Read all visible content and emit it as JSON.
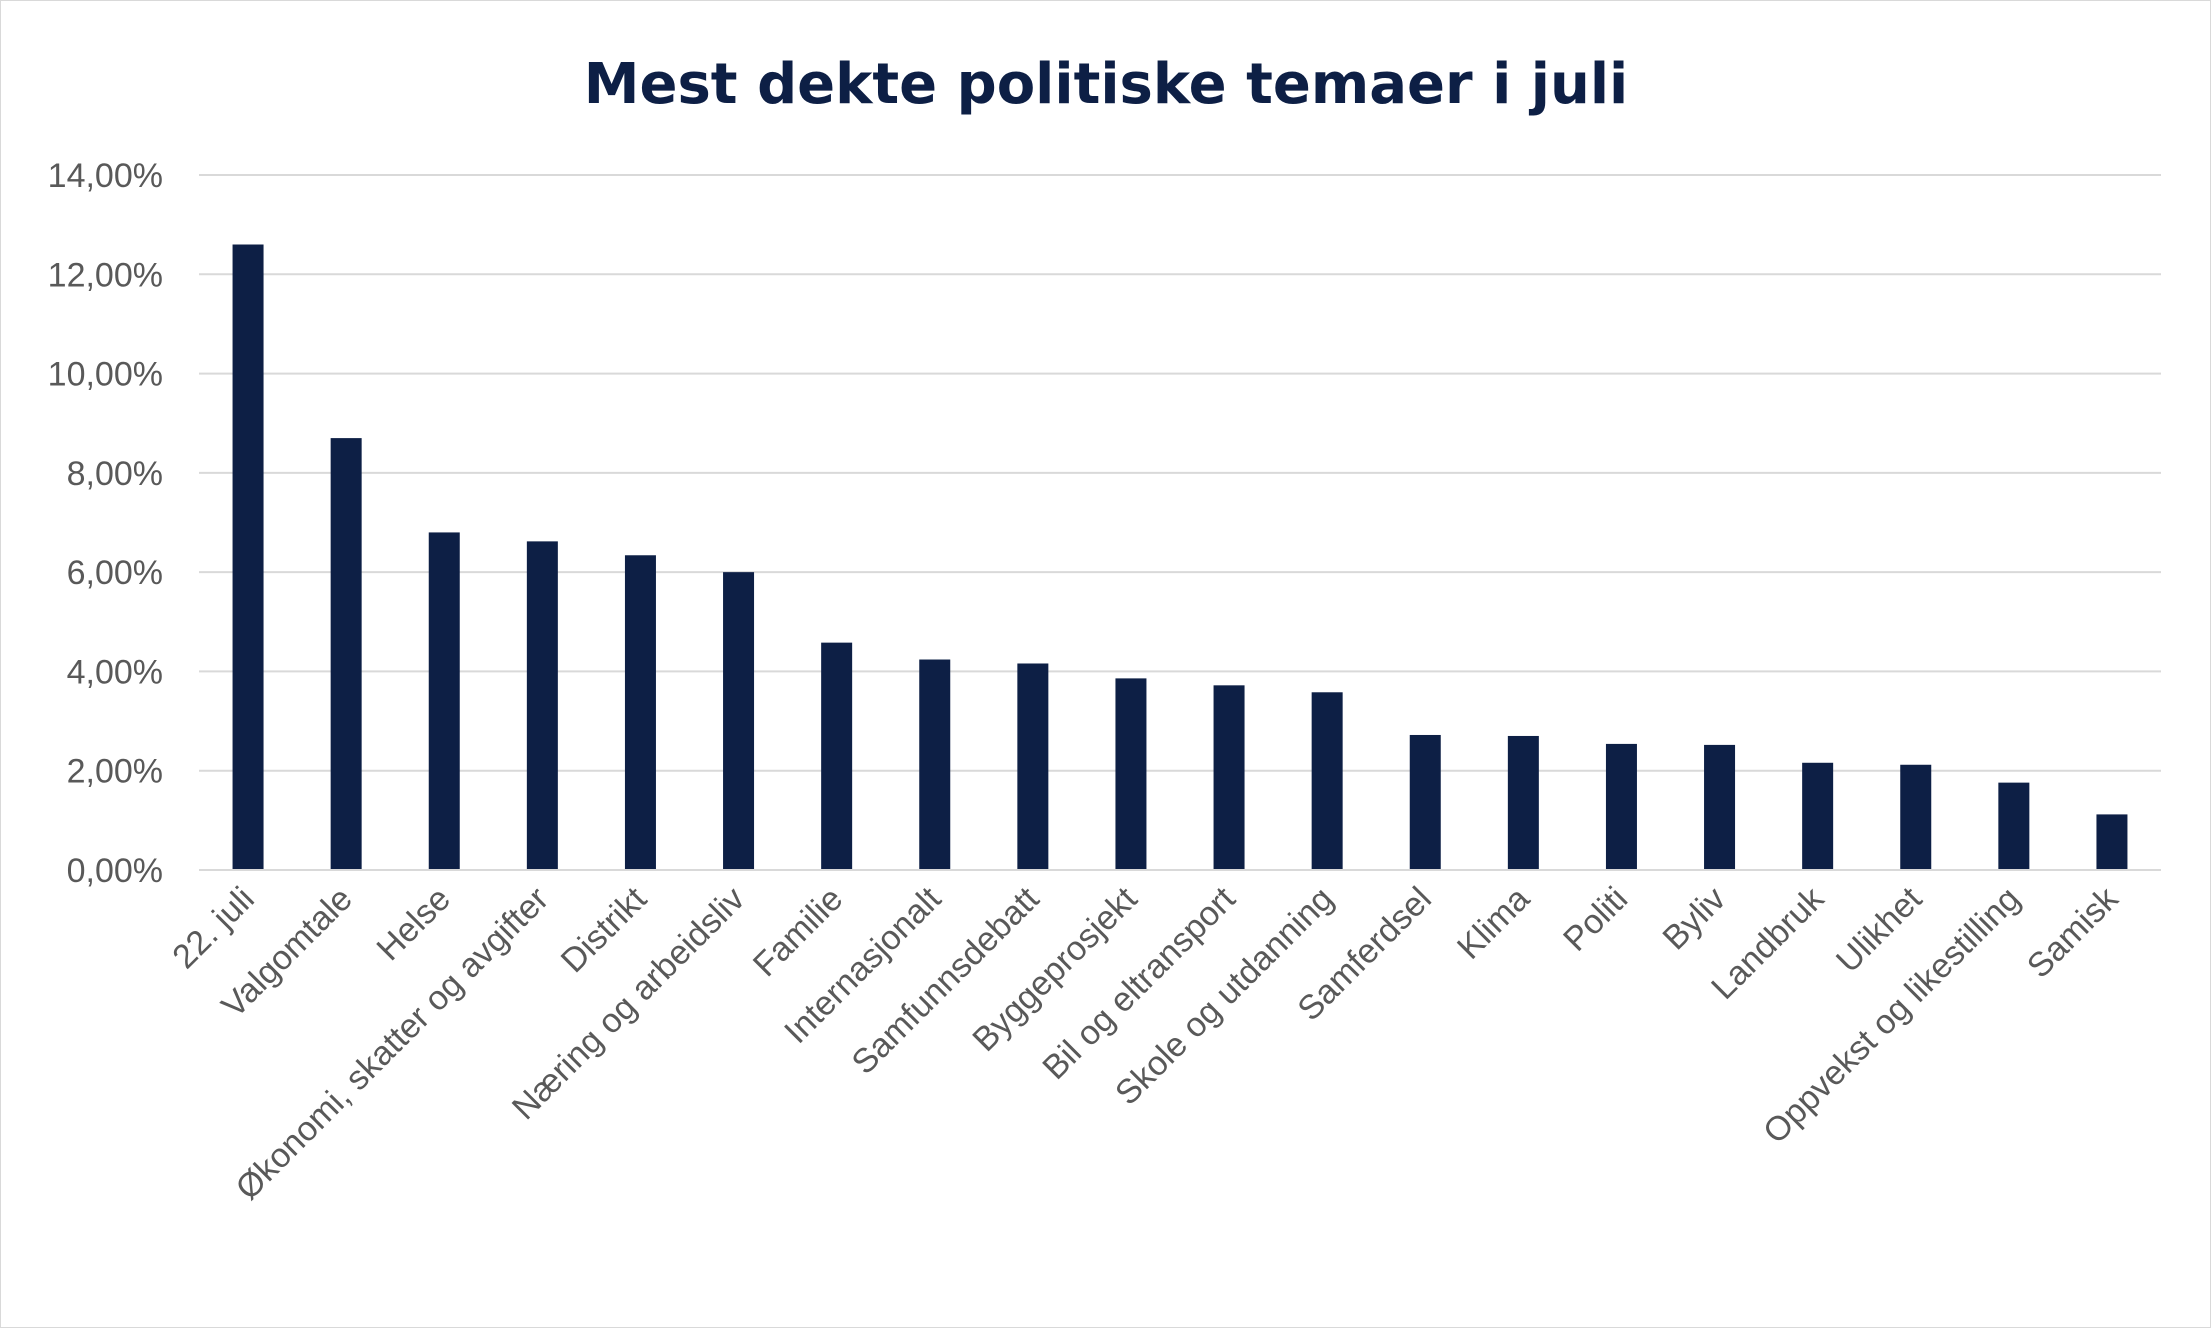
{
  "chart_data": {
    "type": "bar",
    "title": "Mest dekte politiske temaer i juli",
    "xlabel": "",
    "ylabel": "",
    "ylim": [
      0,
      14
    ],
    "yticks": [
      0,
      2,
      4,
      6,
      8,
      10,
      12,
      14
    ],
    "ytick_labels": [
      "0,00%",
      "2,00%",
      "4,00%",
      "6,00%",
      "8,00%",
      "10,00%",
      "12,00%",
      "14,00%"
    ],
    "grid": true,
    "bar_color": "#0d1f45",
    "categories": [
      "22. juli",
      "Valgomtale",
      "Helse",
      "Økonomi, skatter og avgifter",
      "Distrikt",
      "Næring og arbeidsliv",
      "Familie",
      "Internasjonalt",
      "Samfunnsdebatt",
      "Byggeprosjekt",
      "Bil og eltransport",
      "Skole og utdanning",
      "Samferdsel",
      "Klima",
      "Politi",
      "Byliv",
      "Landbruk",
      "Ulikhet",
      "Oppvekst og likestilling",
      "Samisk"
    ],
    "values": [
      12.6,
      8.7,
      6.8,
      6.62,
      6.34,
      6.0,
      4.58,
      4.24,
      4.16,
      3.86,
      3.72,
      3.58,
      2.72,
      2.7,
      2.54,
      2.52,
      2.16,
      2.12,
      1.76,
      1.12
    ]
  }
}
